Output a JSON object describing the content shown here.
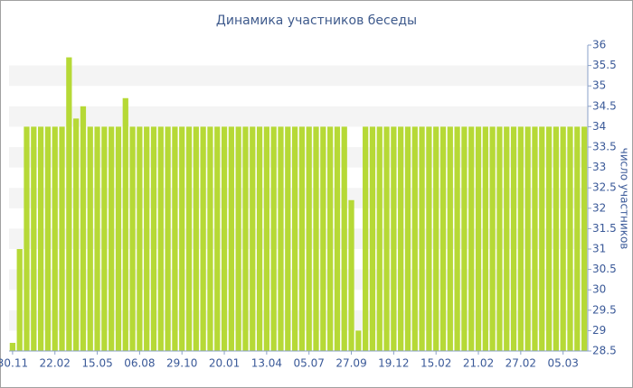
{
  "chart_data": {
    "type": "bar",
    "title": "Динамика участников беседы",
    "y_label": "число участников",
    "categories": [
      "30.11",
      null,
      null,
      null,
      null,
      null,
      "22.02",
      null,
      null,
      null,
      null,
      null,
      "15.05",
      null,
      null,
      null,
      null,
      null,
      "06.08",
      null,
      null,
      null,
      null,
      null,
      "29.10",
      null,
      null,
      null,
      null,
      null,
      "20.01",
      null,
      null,
      null,
      null,
      null,
      "13.04",
      null,
      null,
      null,
      null,
      null,
      "05.07",
      null,
      null,
      null,
      null,
      null,
      "27.09",
      null,
      null,
      null,
      null,
      null,
      "19.12",
      null,
      null,
      null,
      null,
      null,
      "15.02",
      null,
      null,
      null,
      null,
      null,
      "21.02",
      null,
      null,
      null,
      null,
      null,
      "27.02",
      null,
      null,
      null,
      null,
      null,
      "05.03",
      null,
      null,
      null
    ],
    "values": [
      28.7,
      31,
      34,
      34,
      34,
      34,
      34,
      34,
      35.7,
      34.2,
      34.5,
      34,
      34,
      34,
      34,
      34,
      34.7,
      34,
      34,
      34,
      34,
      34,
      34,
      34,
      34,
      34,
      34,
      34,
      34,
      34,
      34,
      34,
      34,
      34,
      34,
      34,
      34,
      34,
      34,
      34,
      34,
      34,
      34,
      34,
      34,
      34,
      34,
      34,
      32.2,
      29,
      34,
      34,
      34,
      34,
      34,
      34,
      34,
      34,
      34,
      34,
      34,
      34,
      34,
      34,
      34,
      34,
      34,
      34,
      34,
      34,
      34,
      34,
      34,
      34,
      34,
      34,
      34,
      34,
      34,
      34,
      34,
      34
    ],
    "color": "#b6d936",
    "ylim": [
      28.5,
      36
    ],
    "yticks": [
      28.5,
      29,
      29.5,
      30,
      30.5,
      31,
      31.5,
      32,
      32.5,
      33,
      33.5,
      34,
      34.5,
      35,
      35.5,
      36
    ],
    "grid": true,
    "y_axis_side": "right"
  }
}
